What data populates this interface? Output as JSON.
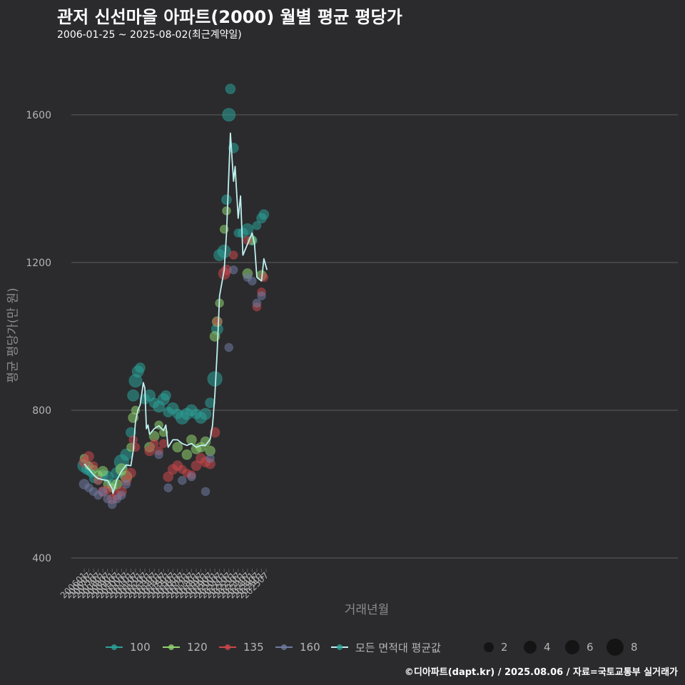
{
  "header": {
    "title": "관저 신선마을 아파트(2000) 월별 평균 평당가",
    "subtitle": "2006-01-25 ~ 2025-08-02(최근계약일)"
  },
  "credit": "©디아파트(dapt.kr) / 2025.08.06 / 자료=국토교통부 실거래가",
  "colors": {
    "background": "#2b2b2d",
    "grid": "#5e5e5e",
    "axis_text": "#b5b5b5",
    "avg_line": "#bff0f0",
    "area_100": "#2aa198",
    "area_120": "#8fd16e",
    "area_135": "#c9474a",
    "area_160": "#6f7aa0"
  },
  "legend": {
    "series": [
      {
        "label": "100",
        "color": "#2aa198"
      },
      {
        "label": "120",
        "color": "#8fd16e"
      },
      {
        "label": "135",
        "color": "#c9474a"
      },
      {
        "label": "160",
        "color": "#6f7aa0"
      },
      {
        "label": "모든 면적대 평균값",
        "color": "#bff0f0"
      }
    ],
    "sizes": [
      "2",
      "4",
      "6",
      "8"
    ]
  },
  "chart_data": {
    "type": "scatter",
    "title": "관저 신선마을 아파트(2000) 월별 평균 평당가",
    "xlabel": "거래년월",
    "ylabel": "평균 평당가(만 원)",
    "ylim": [
      375,
      1760
    ],
    "yticks": [
      400,
      800,
      1200,
      1600
    ],
    "x_range": [
      "200601",
      "202508"
    ],
    "xticks": [
      "200601",
      "200607",
      "200701",
      "200707",
      "200801",
      "200807",
      "200901",
      "200907",
      "201001",
      "201007",
      "201101",
      "201107",
      "201201",
      "201207",
      "201301",
      "201307",
      "201401",
      "201407",
      "201501",
      "201507",
      "201601",
      "201607",
      "201701",
      "201707",
      "201801",
      "201807",
      "201901",
      "201907",
      "202001",
      "202007",
      "202101",
      "202107",
      "202201",
      "202207",
      "202301",
      "202307",
      "202401",
      "202407",
      "202501",
      "202507"
    ],
    "grid": "horizontal",
    "legend_position": "bottom",
    "avg_series": {
      "name": "모든 면적대 평균값",
      "keypoints": [
        [
          "200601",
          655
        ],
        [
          "200607",
          640
        ],
        [
          "200701",
          625
        ],
        [
          "200707",
          615
        ],
        [
          "200801",
          612
        ],
        [
          "200807",
          610
        ],
        [
          "200901",
          588
        ],
        [
          "200902",
          575
        ],
        [
          "200907",
          612
        ],
        [
          "201001",
          635
        ],
        [
          "201007",
          652
        ],
        [
          "201101",
          650
        ],
        [
          "201104",
          690
        ],
        [
          "201107",
          770
        ],
        [
          "201110",
          800
        ],
        [
          "201201",
          815
        ],
        [
          "201204",
          860
        ],
        [
          "201205",
          875
        ],
        [
          "201207",
          860
        ],
        [
          "201209",
          750
        ],
        [
          "201211",
          760
        ],
        [
          "201301",
          735
        ],
        [
          "201307",
          750
        ],
        [
          "201401",
          758
        ],
        [
          "201407",
          745
        ],
        [
          "201410",
          760
        ],
        [
          "201501",
          700
        ],
        [
          "201507",
          720
        ],
        [
          "201601",
          720
        ],
        [
          "201607",
          710
        ],
        [
          "201701",
          705
        ],
        [
          "201707",
          710
        ],
        [
          "201801",
          700
        ],
        [
          "201807",
          705
        ],
        [
          "201901",
          705
        ],
        [
          "201907",
          722
        ],
        [
          "201910",
          760
        ],
        [
          "202001",
          840
        ],
        [
          "202004",
          960
        ],
        [
          "202007",
          1110
        ],
        [
          "202101",
          1180
        ],
        [
          "202104",
          1280
        ],
        [
          "202107",
          1440
        ],
        [
          "202109",
          1550
        ],
        [
          "202201",
          1420
        ],
        [
          "202203",
          1460
        ],
        [
          "202207",
          1320
        ],
        [
          "202210",
          1380
        ],
        [
          "202301",
          1220
        ],
        [
          "202307",
          1250
        ],
        [
          "202401",
          1280
        ],
        [
          "202404",
          1250
        ],
        [
          "202407",
          1160
        ],
        [
          "202501",
          1150
        ],
        [
          "202504",
          1210
        ],
        [
          "202508",
          1180
        ]
      ]
    },
    "series": [
      {
        "name": "100",
        "points": [
          [
            "200601",
            650,
            6
          ],
          [
            "200604",
            640,
            4
          ],
          [
            "200607",
            635,
            3
          ],
          [
            "200610",
            630,
            3
          ],
          [
            "200701",
            615,
            3
          ],
          [
            "200707",
            610,
            3
          ],
          [
            "200801",
            625,
            4
          ],
          [
            "200807",
            620,
            5
          ],
          [
            "200901",
            600,
            4
          ],
          [
            "200907",
            630,
            5
          ],
          [
            "201001",
            660,
            7
          ],
          [
            "201007",
            680,
            5
          ],
          [
            "201101",
            740,
            4
          ],
          [
            "201104",
            840,
            5
          ],
          [
            "201107",
            880,
            6
          ],
          [
            "201110",
            905,
            5
          ],
          [
            "201201",
            915,
            4
          ],
          [
            "201207",
            830,
            4
          ],
          [
            "201301",
            840,
            5
          ],
          [
            "201307",
            820,
            4
          ],
          [
            "201401",
            810,
            5
          ],
          [
            "201407",
            830,
            5
          ],
          [
            "201410",
            840,
            4
          ],
          [
            "201501",
            795,
            4
          ],
          [
            "201507",
            805,
            5
          ],
          [
            "201601",
            790,
            4
          ],
          [
            "201607",
            780,
            6
          ],
          [
            "201701",
            790,
            5
          ],
          [
            "201707",
            800,
            5
          ],
          [
            "201801",
            790,
            4
          ],
          [
            "201807",
            780,
            5
          ],
          [
            "201901",
            790,
            5
          ],
          [
            "201907",
            820,
            4
          ],
          [
            "202001",
            885,
            7
          ],
          [
            "202004",
            1020,
            5
          ],
          [
            "202007",
            1220,
            5
          ],
          [
            "202101",
            1230,
            6
          ],
          [
            "202104",
            1370,
            4
          ],
          [
            "202107",
            1600,
            6
          ],
          [
            "202109",
            1670,
            4
          ],
          [
            "202201",
            1510,
            4
          ],
          [
            "202207",
            1280,
            3
          ],
          [
            "202301",
            1280,
            4
          ],
          [
            "202307",
            1290,
            5
          ],
          [
            "202401",
            1260,
            4
          ],
          [
            "202407",
            1300,
            3
          ],
          [
            "202501",
            1320,
            4
          ],
          [
            "202504",
            1330,
            4
          ]
        ]
      },
      {
        "name": "120",
        "points": [
          [
            "200601",
            670,
            3
          ],
          [
            "200607",
            650,
            3
          ],
          [
            "200701",
            640,
            3
          ],
          [
            "200707",
            625,
            3
          ],
          [
            "200801",
            635,
            4
          ],
          [
            "200807",
            600,
            3
          ],
          [
            "200901",
            590,
            3
          ],
          [
            "200907",
            600,
            4
          ],
          [
            "201001",
            640,
            5
          ],
          [
            "201007",
            620,
            5
          ],
          [
            "201101",
            700,
            3
          ],
          [
            "201104",
            780,
            4
          ],
          [
            "201107",
            800,
            3
          ],
          [
            "201301",
            700,
            4
          ],
          [
            "201307",
            730,
            4
          ],
          [
            "201401",
            760,
            3
          ],
          [
            "201407",
            740,
            3
          ],
          [
            "201601",
            700,
            4
          ],
          [
            "201701",
            680,
            4
          ],
          [
            "201707",
            720,
            4
          ],
          [
            "201801",
            695,
            4
          ],
          [
            "201807",
            700,
            4
          ],
          [
            "201901",
            715,
            4
          ],
          [
            "201907",
            690,
            4
          ],
          [
            "202001",
            1000,
            4
          ],
          [
            "202004",
            1040,
            4
          ],
          [
            "202007",
            1090,
            3
          ],
          [
            "202101",
            1290,
            3
          ],
          [
            "202104",
            1340,
            3
          ],
          [
            "202307",
            1170,
            4
          ],
          [
            "202401",
            1260,
            3
          ],
          [
            "202501",
            1165,
            4
          ]
        ]
      },
      {
        "name": "135",
        "points": [
          [
            "200601",
            660,
            4
          ],
          [
            "200607",
            675,
            4
          ],
          [
            "200701",
            650,
            3
          ],
          [
            "200707",
            610,
            3
          ],
          [
            "200801",
            580,
            4
          ],
          [
            "200807",
            585,
            3
          ],
          [
            "200901",
            560,
            4
          ],
          [
            "200907",
            570,
            4
          ],
          [
            "201001",
            580,
            4
          ],
          [
            "201007",
            610,
            4
          ],
          [
            "201101",
            630,
            4
          ],
          [
            "201104",
            720,
            3
          ],
          [
            "201107",
            700,
            3
          ],
          [
            "201301",
            690,
            4
          ],
          [
            "201307",
            710,
            3
          ],
          [
            "201401",
            690,
            3
          ],
          [
            "201407",
            710,
            3
          ],
          [
            "201501",
            620,
            4
          ],
          [
            "201507",
            640,
            4
          ],
          [
            "201601",
            650,
            4
          ],
          [
            "201607",
            640,
            3
          ],
          [
            "201701",
            630,
            3
          ],
          [
            "201707",
            625,
            3
          ],
          [
            "201801",
            650,
            4
          ],
          [
            "201807",
            670,
            4
          ],
          [
            "201901",
            660,
            4
          ],
          [
            "201907",
            655,
            4
          ],
          [
            "202001",
            740,
            4
          ],
          [
            "202004",
            1040,
            3
          ],
          [
            "202101",
            1170,
            5
          ],
          [
            "202104",
            1180,
            4
          ],
          [
            "202201",
            1220,
            3
          ],
          [
            "202307",
            1260,
            3
          ],
          [
            "202407",
            1080,
            3
          ],
          [
            "202501",
            1120,
            3
          ],
          [
            "202504",
            1160,
            3
          ]
        ]
      },
      {
        "name": "160",
        "points": [
          [
            "200601",
            600,
            4
          ],
          [
            "200607",
            590,
            3
          ],
          [
            "200701",
            580,
            3
          ],
          [
            "200707",
            570,
            3
          ],
          [
            "200801",
            580,
            3
          ],
          [
            "200807",
            560,
            3
          ],
          [
            "200901",
            545,
            3
          ],
          [
            "200907",
            560,
            3
          ],
          [
            "201001",
            570,
            3
          ],
          [
            "201007",
            600,
            3
          ],
          [
            "201401",
            680,
            3
          ],
          [
            "201501",
            590,
            3
          ],
          [
            "201607",
            610,
            3
          ],
          [
            "201707",
            620,
            3
          ],
          [
            "201901",
            580,
            3
          ],
          [
            "201907",
            670,
            3
          ],
          [
            "202107",
            970,
            3
          ],
          [
            "202201",
            1180,
            3
          ],
          [
            "202307",
            1160,
            3
          ],
          [
            "202401",
            1150,
            3
          ],
          [
            "202407",
            1090,
            3
          ],
          [
            "202501",
            1110,
            3
          ]
        ]
      }
    ]
  }
}
